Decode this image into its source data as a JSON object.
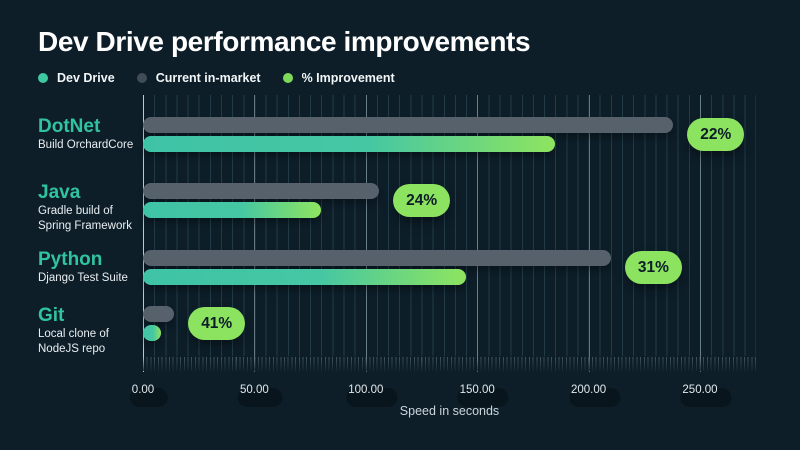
{
  "title": "Dev Drive performance improvements",
  "legend": {
    "items": [
      {
        "label": "Dev Drive",
        "color": "#3ec9a0",
        "icon": "dev-drive-dot"
      },
      {
        "label": "Current in-market",
        "color": "#414c57",
        "icon": "current-in-market-dot"
      },
      {
        "label": "% Improvement",
        "color": "#7edb5a",
        "icon": "improvement-dot"
      }
    ]
  },
  "axis": {
    "title": "Speed in seconds",
    "tick_labels": [
      "0.00",
      "50.00",
      "100.00",
      "150.00",
      "200.00",
      "250.00"
    ],
    "tick_values": [
      0,
      50,
      100,
      150,
      200,
      250
    ],
    "max": 275
  },
  "chart_data": {
    "type": "bar",
    "orientation": "horizontal",
    "title": "Dev Drive performance improvements",
    "xlabel": "Speed in seconds",
    "xlim": [
      0,
      275
    ],
    "grid": true,
    "legend_position": "top-left",
    "series_names": [
      "Dev Drive",
      "Current in-market",
      "% Improvement"
    ],
    "rows": [
      {
        "category": "DotNet",
        "description": "Build OrchardCore",
        "current_in_market": 238,
        "dev_drive": 185,
        "improvement": "22%"
      },
      {
        "category": "Java",
        "description": "Gradle build of Spring Framework",
        "current_in_market": 106,
        "dev_drive": 80,
        "improvement": "24%"
      },
      {
        "category": "Python",
        "description": "Django Test Suite",
        "current_in_market": 210,
        "dev_drive": 145,
        "improvement": "31%"
      },
      {
        "category": "Git",
        "description": "Local clone of NodeJS repo",
        "current_in_market": 14,
        "dev_drive": 8,
        "improvement": "41%"
      }
    ]
  },
  "colors": {
    "background": "#0d1e29",
    "title_text": "#ffffff",
    "category_text": "#2fc3a2",
    "description_text": "#e9eef1",
    "current_bar": "#57616b",
    "dev_bar_start": "#41c5a6",
    "dev_bar_end": "#8ee45f",
    "badge_bg": "#8be35f",
    "badge_text": "#0e2029",
    "axis_text": "#dde5e8",
    "grid_minor": "#1d3541",
    "grid_major": "#93a2a9"
  }
}
